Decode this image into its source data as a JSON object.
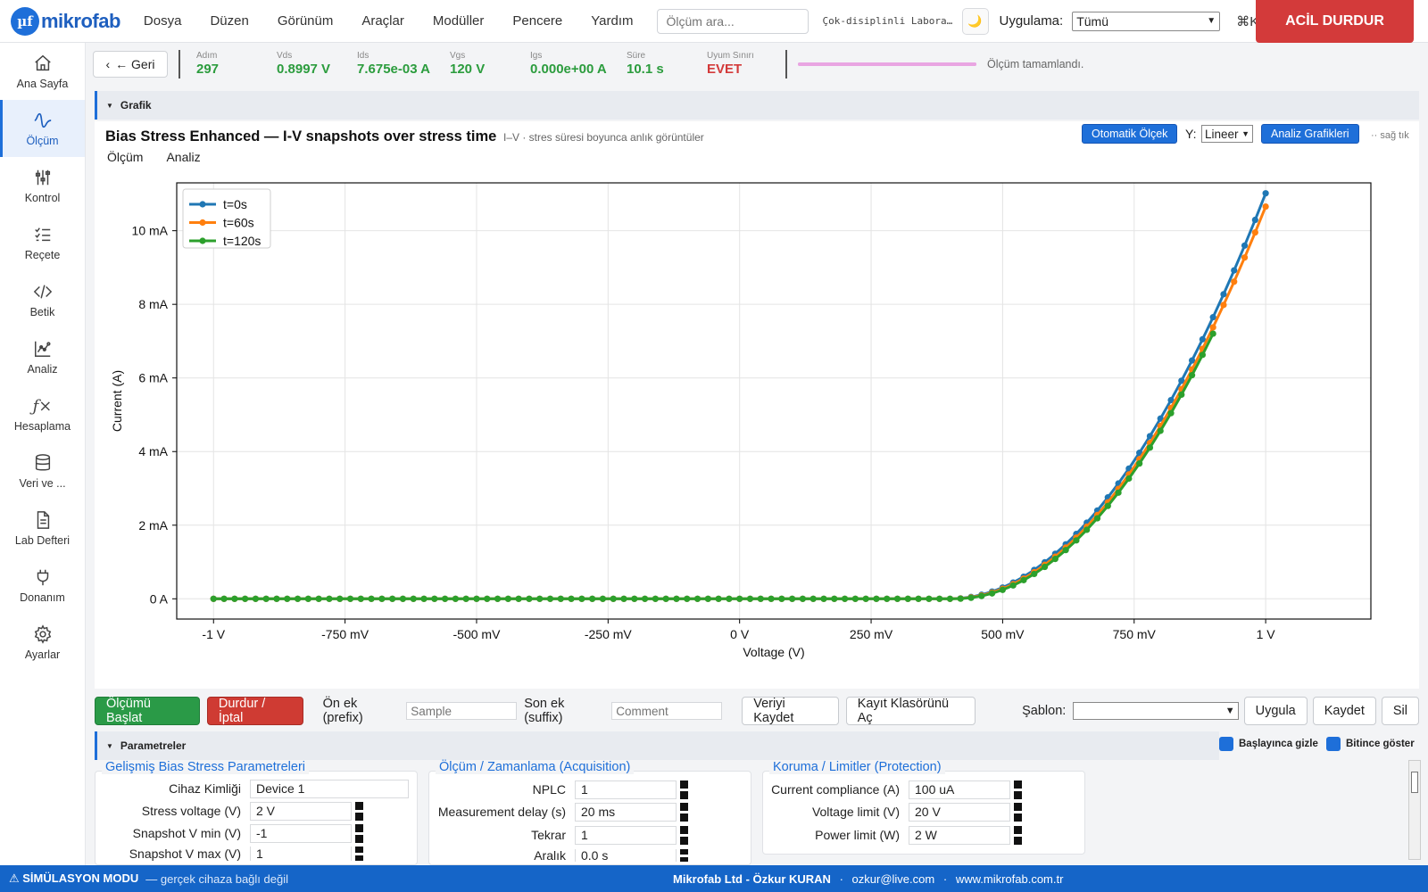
{
  "menubar": {
    "logo_mark": "µf",
    "logo_text": "mikrofab",
    "items": [
      "Dosya",
      "Düzen",
      "Görünüm",
      "Araçlar",
      "Modüller",
      "Pencere",
      "Yardım"
    ],
    "search_placeholder": "Ölçüm ara...",
    "lab_name": "Çok-disiplinli Laboratuvar",
    "app_label": "Uygulama:",
    "app_value": "Tümü",
    "shortcut": "⌘K",
    "estop_label": "ACİL DURDUR"
  },
  "sidebar": {
    "items": [
      {
        "label": "Ana Sayfa",
        "icon": "home-icon"
      },
      {
        "label": "Ölçüm",
        "icon": "waveform-icon"
      },
      {
        "label": "Kontrol",
        "icon": "sliders-icon"
      },
      {
        "label": "Reçete",
        "icon": "checklist-icon"
      },
      {
        "label": "Betik",
        "icon": "code-icon"
      },
      {
        "label": "Analiz",
        "icon": "chart-icon"
      },
      {
        "label": "Hesaplama",
        "icon": "function-icon"
      },
      {
        "label": "Veri ve ...",
        "icon": "database-icon"
      },
      {
        "label": "Lab Defteri",
        "icon": "document-icon"
      },
      {
        "label": "Donanım",
        "icon": "plug-icon"
      },
      {
        "label": "Ayarlar",
        "icon": "gear-icon"
      }
    ]
  },
  "status": {
    "back_label": "← Geri",
    "stats": [
      {
        "k": "Adım",
        "v": "297"
      },
      {
        "k": "Vds",
        "v": "0.8997 V"
      },
      {
        "k": "Ids",
        "v": "7.675e-03 A"
      },
      {
        "k": "Vgs",
        "v": "120 V"
      },
      {
        "k": "Igs",
        "v": "0.000e+00 A"
      },
      {
        "k": "Süre",
        "v": "10.1 s"
      },
      {
        "k": "Uyum Sınırı",
        "v": "EVET"
      }
    ],
    "progress": 1.0,
    "progress_color": "#e9a5e2",
    "message": "Ölçüm tamamlandı."
  },
  "graph_section": {
    "title": "Grafik"
  },
  "chart_panel": {
    "title": "Bias Stress Enhanced — I-V snapshots over stress time",
    "subtitle": "I–V · stres süresi boyunca anlık görüntüler",
    "auto_scale": "Otomatik Ölçek",
    "y_label": "Y:",
    "y_scale": "Lineer",
    "analysis_btn": "Analiz Grafikleri",
    "hint": "·· sağ tık",
    "tabs": [
      "Ölçüm",
      "Analiz"
    ]
  },
  "chart_data": {
    "type": "line",
    "title": "",
    "xlabel": "Voltage (V)",
    "ylabel": "Current (A)",
    "xlim": [
      -1.07,
      1.2
    ],
    "ylim": [
      -0.00055,
      0.0113
    ],
    "x_ticks": [
      -1,
      -0.75,
      -0.5,
      -0.25,
      0,
      0.25,
      0.5,
      0.75,
      1
    ],
    "x_tick_labels": [
      "-1 V",
      "-750 mV",
      "-500 mV",
      "-250 mV",
      "0 V",
      "250 mV",
      "500 mV",
      "750 mV",
      "1 V"
    ],
    "y_ticks": [
      0,
      0.002,
      0.004,
      0.006,
      0.008,
      0.01
    ],
    "y_tick_labels": [
      "0 A",
      "2 mA",
      "4 mA",
      "6 mA",
      "8 mA",
      "10 mA"
    ],
    "grid": true,
    "legend": "top-left",
    "x": {
      "start": -1,
      "stop": 1,
      "step": 0.02
    },
    "series": [
      {
        "name": "t=0s",
        "color": "#1f77b4",
        "vth": 0.4,
        "k": 0.0306,
        "x_max": 1.0
      },
      {
        "name": "t=60s",
        "color": "#ff7f0e",
        "vth": 0.405,
        "k": 0.0301,
        "x_max": 1.0
      },
      {
        "name": "t=120s",
        "color": "#2ca02c",
        "vth": 0.41,
        "k": 0.03,
        "x_max": 0.9
      }
    ]
  },
  "actions": {
    "start": "Ölçümü Başlat",
    "stop": "Durdur / İptal",
    "prefix_label": "Ön ek (prefix)",
    "prefix_placeholder": "Sample",
    "suffix_label": "Son ek (suffix)",
    "suffix_placeholder": "Comment",
    "save_data": "Veriyi Kaydet",
    "open_folder": "Kayıt Klasörünü Aç",
    "template_label": "Şablon:",
    "apply": "Uygula",
    "save": "Kaydet",
    "delete": "Sil"
  },
  "params": {
    "title": "Parametreler",
    "hide_on_start": "Başlayınca gizle",
    "show_on_finish": "Bitince göster",
    "groups": [
      {
        "title": "Gelişmiş Bias Stress Parametreleri",
        "rows": [
          {
            "label": "Cihaz Kimliği",
            "value": "Device 1"
          },
          {
            "label": "Stress voltage (V)",
            "value": "2 V"
          },
          {
            "label": "Snapshot V min (V)",
            "value": "-1"
          },
          {
            "label": "Snapshot V max (V)",
            "value": "1"
          }
        ]
      },
      {
        "title": "Ölçüm / Zamanlama (Acquisition)",
        "rows": [
          {
            "label": "NPLC",
            "value": "1"
          },
          {
            "label": "Measurement delay (s)",
            "value": "20 ms"
          },
          {
            "label": "Tekrar",
            "value": "1"
          },
          {
            "label": "Aralık",
            "value": "0.0 s"
          }
        ]
      },
      {
        "title": "Koruma / Limitler (Protection)",
        "rows": [
          {
            "label": "Current compliance (A)",
            "value": "100 uA"
          },
          {
            "label": "Voltage limit (V)",
            "value": "20 V"
          },
          {
            "label": "Power limit (W)",
            "value": "2 W"
          }
        ]
      }
    ]
  },
  "footer": {
    "sim_mode": "⚠ SİMÜLASYON MODU",
    "sim_sub": "— gerçek cihaza bağlı değil",
    "company": "Mikrofab Ltd - Özkur KURAN",
    "email": "ozkur@live.com",
    "website": "www.mikrofab.com.tr",
    "separator": "·"
  }
}
